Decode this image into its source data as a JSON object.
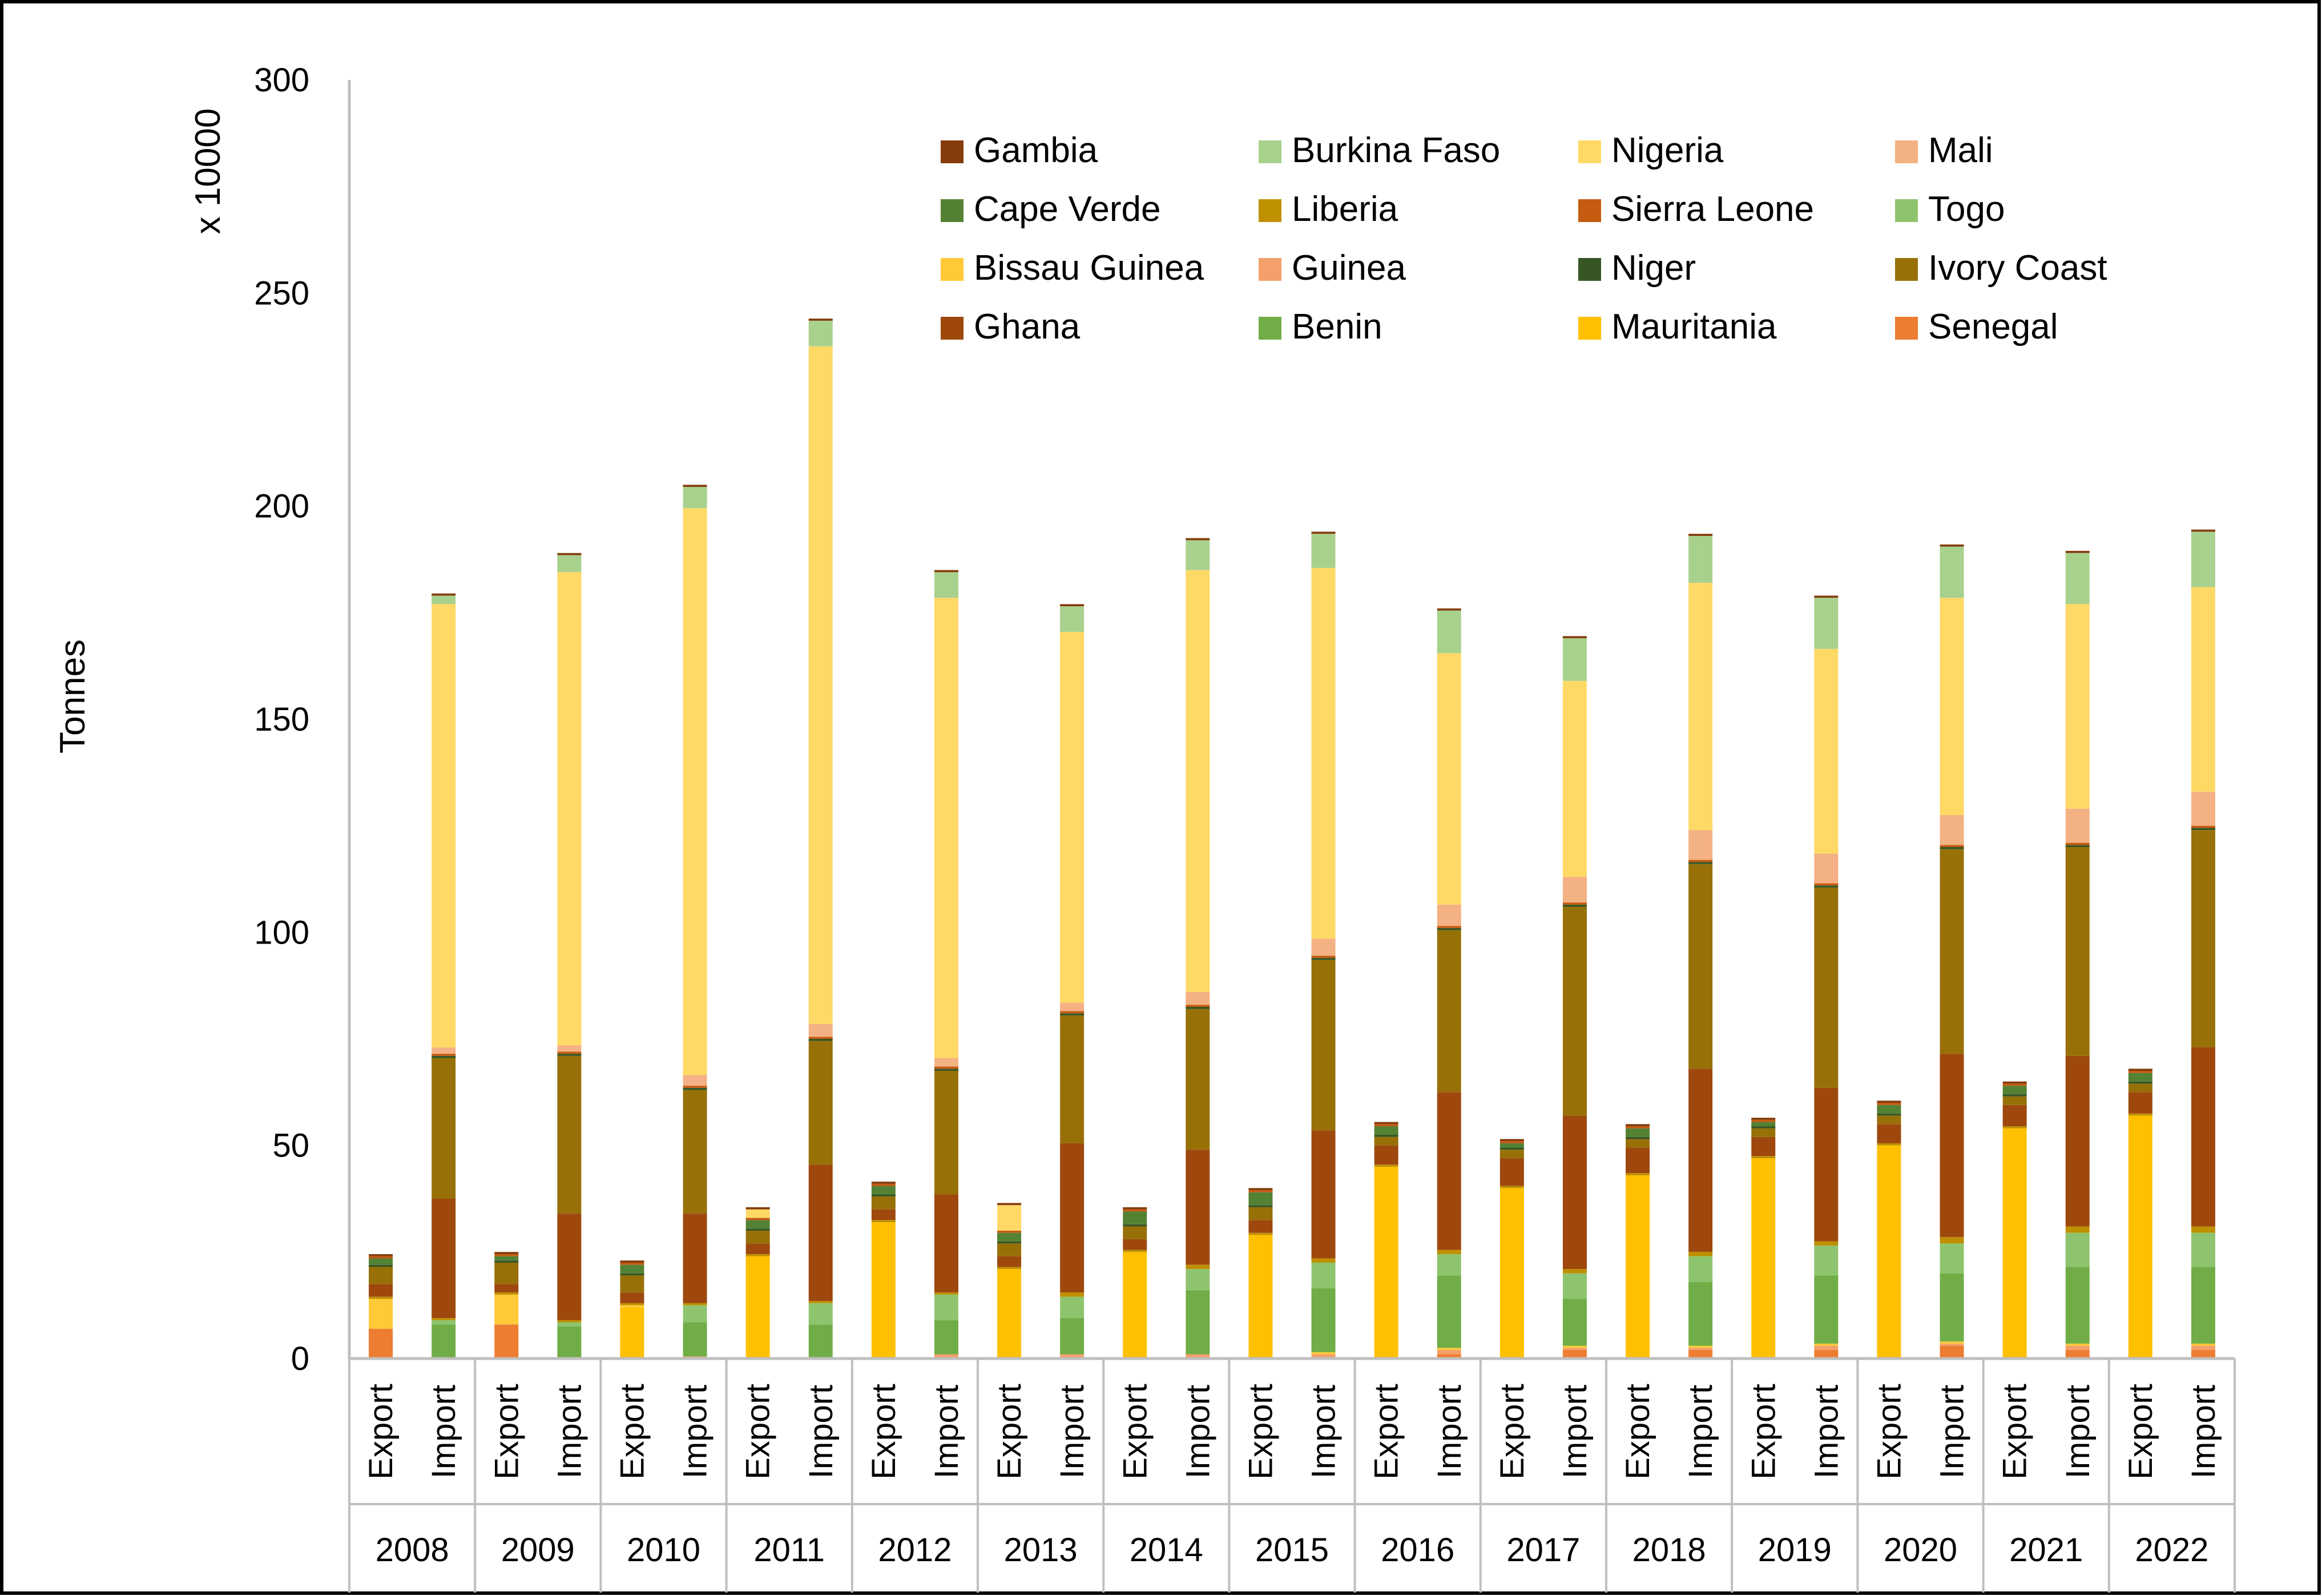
{
  "chart_data": {
    "type": "bar",
    "stacked": true,
    "title": "",
    "ylabel": "Tonnes",
    "yscale_label": "x 10000",
    "xlabel": "",
    "ylim": [
      0,
      300
    ],
    "yticks": [
      0,
      50,
      100,
      150,
      200,
      250,
      300
    ],
    "grid": false,
    "legend_position": "top-right",
    "years": [
      "2008",
      "2009",
      "2010",
      "2011",
      "2012",
      "2013",
      "2014",
      "2015",
      "2016",
      "2017",
      "2018",
      "2019",
      "2020",
      "2021",
      "2022"
    ],
    "flows": [
      "Export",
      "Import"
    ],
    "stack_order": [
      "Senegal",
      "Guinea",
      "Mauritania",
      "Bissau Guinea",
      "Benin",
      "Togo",
      "Liberia",
      "Ghana",
      "Ivory Coast",
      "Niger",
      "Cape Verde",
      "Sierra Leone",
      "Mali",
      "Nigeria",
      "Burkina Faso",
      "Gambia"
    ],
    "legend_order": [
      "Gambia",
      "Burkina Faso",
      "Nigeria",
      "Mali",
      "Cape Verde",
      "Liberia",
      "Sierra Leone",
      "Togo",
      "Bissau Guinea",
      "Guinea",
      "Niger",
      "Ivory Coast",
      "Ghana",
      "Benin",
      "Mauritania",
      "Senegal"
    ],
    "colors": {
      "Gambia": "#843C0C",
      "Burkina Faso": "#A9D18E",
      "Nigeria": "#FFD966",
      "Mali": "#F4B183",
      "Cape Verde": "#548235",
      "Liberia": "#BF9000",
      "Sierra Leone": "#C55A11",
      "Togo": "#8FC46F",
      "Bissau Guinea": "#FFC938",
      "Guinea": "#F4A06B",
      "Niger": "#375623",
      "Ivory Coast": "#977108",
      "Ghana": "#9E480E",
      "Benin": "#70AD47",
      "Mauritania": "#FFC000",
      "Senegal": "#ED7D31"
    },
    "series": [
      {
        "name": "Senegal",
        "export": [
          7,
          8,
          0,
          0,
          0,
          0,
          0,
          0,
          0,
          0,
          0,
          0,
          0,
          0,
          0
        ],
        "import": [
          0,
          0,
          0,
          0,
          0,
          0,
          0,
          0,
          1,
          2,
          2,
          2,
          3,
          2,
          2
        ]
      },
      {
        "name": "Guinea",
        "export": [
          0,
          0,
          0,
          0,
          0,
          0,
          0,
          0,
          0,
          0,
          0,
          0,
          0,
          0,
          0
        ],
        "import": [
          0,
          0,
          0.5,
          0,
          1,
          1,
          1,
          1,
          1,
          0.5,
          0.5,
          1,
          0.5,
          1,
          1
        ]
      },
      {
        "name": "Mauritania",
        "export": [
          0,
          0,
          12,
          24,
          32,
          21,
          25,
          29,
          45,
          40,
          43,
          47,
          50,
          54,
          57
        ],
        "import": [
          0,
          0,
          0,
          0,
          0,
          0,
          0,
          0,
          0,
          0,
          0,
          0,
          0,
          0,
          0
        ]
      },
      {
        "name": "Bissau Guinea",
        "export": [
          7,
          7,
          0.5,
          0,
          0,
          0,
          0,
          0,
          0,
          0,
          0,
          0,
          0,
          0,
          0
        ],
        "import": [
          0,
          0,
          0,
          0,
          0,
          0,
          0,
          0.5,
          0.5,
          0.5,
          0.5,
          0.5,
          0.5,
          0.5,
          0.5
        ]
      },
      {
        "name": "Benin",
        "export": [
          0,
          0,
          0,
          0,
          0,
          0,
          0,
          0,
          0,
          0,
          0,
          0,
          0,
          0,
          0
        ],
        "import": [
          8,
          7.5,
          8,
          8,
          8,
          8.5,
          15,
          15,
          17,
          11,
          15,
          16,
          16,
          18,
          18
        ]
      },
      {
        "name": "Togo",
        "export": [
          0,
          0,
          0,
          0,
          0,
          0,
          0,
          0,
          0,
          0,
          0,
          0,
          0,
          0,
          0
        ],
        "import": [
          1,
          1,
          4,
          5,
          6,
          5,
          5,
          6,
          5,
          6,
          6,
          7,
          7,
          8,
          8
        ]
      },
      {
        "name": "Liberia",
        "export": [
          0.5,
          0.5,
          0.5,
          0.5,
          0.5,
          0.5,
          0.5,
          0.5,
          0.5,
          0.5,
          0.5,
          0.5,
          0.5,
          0.5,
          0.5
        ],
        "import": [
          0.5,
          0.5,
          0.5,
          0.5,
          0.5,
          1,
          1,
          1,
          1,
          1,
          1,
          1,
          1.5,
          1.5,
          1.5
        ]
      },
      {
        "name": "Ghana",
        "export": [
          3,
          2,
          2.5,
          2.5,
          2.5,
          2.5,
          2.5,
          3,
          4.5,
          6.5,
          6,
          4.5,
          4.5,
          5,
          5
        ],
        "import": [
          28,
          25,
          21,
          32,
          23,
          35,
          27,
          30,
          37,
          36,
          43,
          36,
          43,
          40,
          42
        ]
      },
      {
        "name": "Ivory Coast",
        "export": [
          4,
          5,
          4,
          3,
          3,
          3,
          3,
          3,
          2,
          2,
          2,
          2,
          2,
          2,
          2
        ],
        "import": [
          33,
          37,
          29,
          29,
          29,
          30,
          33,
          40,
          38,
          49,
          48,
          47,
          48,
          49,
          51
        ]
      },
      {
        "name": "Niger",
        "export": [
          0.5,
          0.5,
          0.5,
          0.5,
          0.5,
          0.5,
          0.5,
          0.5,
          0.5,
          0.5,
          0.5,
          0.5,
          0.5,
          0.5,
          0.5
        ],
        "import": [
          0.5,
          0.5,
          0.5,
          0.5,
          0.5,
          0.5,
          0.5,
          0.5,
          0.5,
          0.5,
          0.5,
          0.5,
          0.5,
          0.5,
          0.5
        ]
      },
      {
        "name": "Cape Verde",
        "export": [
          1.5,
          1,
          2,
          2,
          2,
          2,
          3,
          3,
          2,
          1,
          2,
          1,
          2,
          2,
          2
        ],
        "import": [
          0,
          0,
          0,
          0,
          0,
          0,
          0,
          0,
          0,
          0,
          0,
          0,
          0,
          0,
          0
        ]
      },
      {
        "name": "Sierra Leone",
        "export": [
          0.5,
          0.5,
          0.5,
          0.5,
          0.5,
          0.5,
          0.5,
          0.5,
          0.5,
          0.5,
          0.5,
          0.5,
          0.5,
          0.5,
          0.5
        ],
        "import": [
          0.5,
          0.5,
          0.5,
          0.5,
          0.5,
          0.5,
          0.5,
          0.5,
          0.5,
          0.5,
          0.5,
          0.5,
          0.5,
          0.5,
          0.5
        ]
      },
      {
        "name": "Mali",
        "export": [
          0,
          0,
          0,
          0,
          0,
          0,
          0,
          0,
          0,
          0,
          0,
          0,
          0,
          0,
          0
        ],
        "import": [
          1.5,
          1.5,
          2.5,
          3,
          2,
          2,
          3,
          4,
          5,
          6,
          7,
          7,
          7,
          8,
          8
        ]
      },
      {
        "name": "Nigeria",
        "export": [
          0,
          0,
          0,
          2,
          0,
          6,
          0,
          0,
          0,
          0,
          0,
          0,
          0,
          0,
          0
        ],
        "import": [
          104,
          111,
          133,
          159,
          108,
          87,
          99,
          87,
          59,
          46,
          58,
          48,
          51,
          48,
          48
        ]
      },
      {
        "name": "Burkina Faso",
        "export": [
          0,
          0,
          0,
          0,
          0,
          0,
          0,
          0,
          0,
          0,
          0,
          0,
          0,
          0,
          0
        ],
        "import": [
          2,
          4,
          5,
          6,
          6,
          6,
          7,
          8,
          10,
          10,
          11,
          12,
          12,
          12,
          13
        ]
      },
      {
        "name": "Gambia",
        "export": [
          0.5,
          0.5,
          0.5,
          0.5,
          0.5,
          0.5,
          0.5,
          0.5,
          0.5,
          0.5,
          0.5,
          0.5,
          0.5,
          0.5,
          0.5
        ],
        "import": [
          0.5,
          0.5,
          0.5,
          0.5,
          0.5,
          0.5,
          0.5,
          0.5,
          0.5,
          0.5,
          0.5,
          0.5,
          0.5,
          0.5,
          0.5
        ]
      }
    ]
  }
}
